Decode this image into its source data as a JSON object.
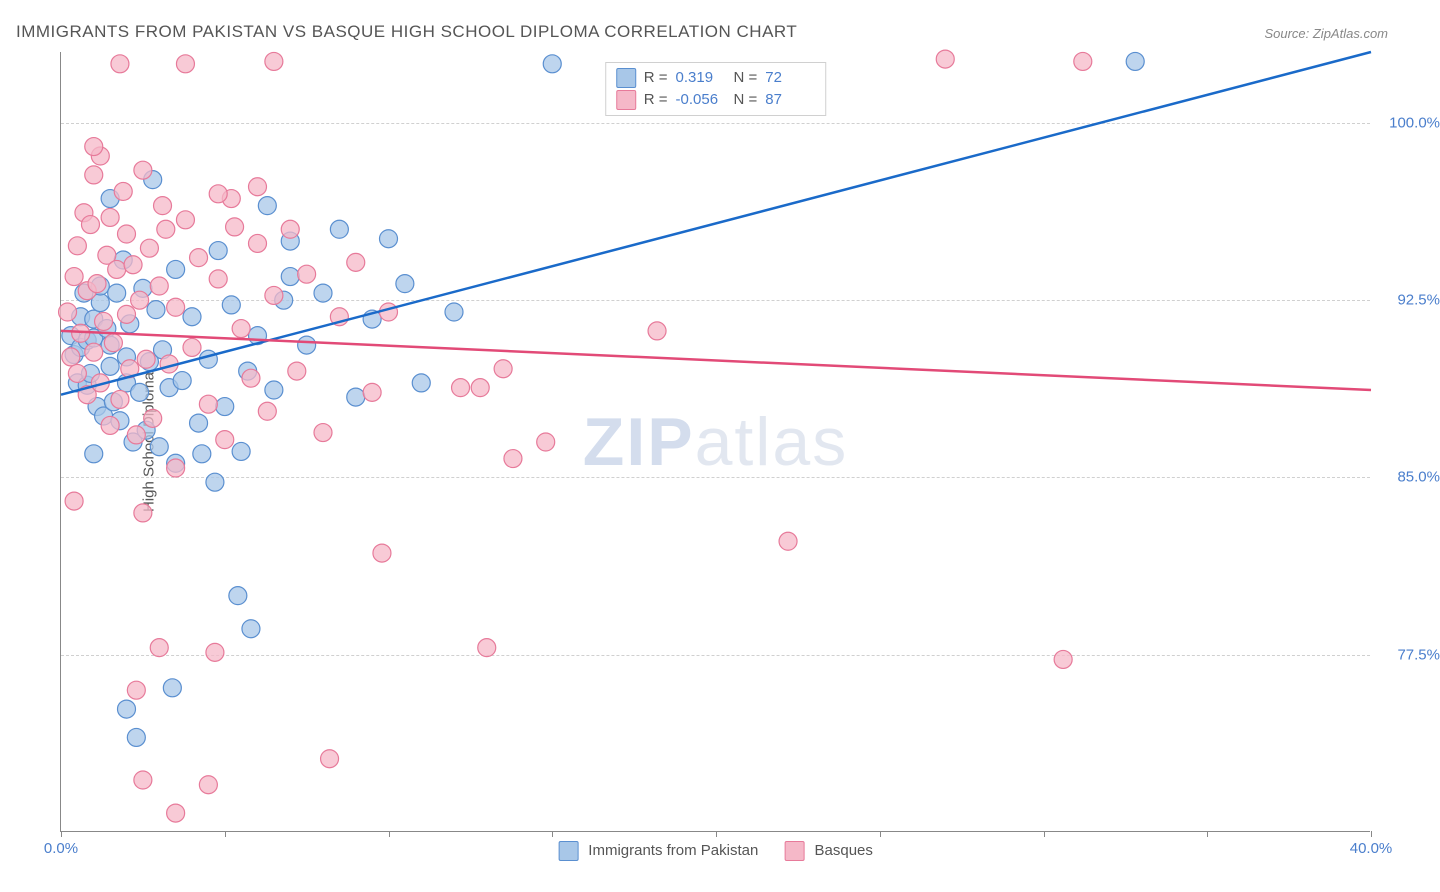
{
  "title": "IMMIGRANTS FROM PAKISTAN VS BASQUE HIGH SCHOOL DIPLOMA CORRELATION CHART",
  "source": "Source: ZipAtlas.com",
  "watermark_bold": "ZIP",
  "watermark_light": "atlas",
  "chart": {
    "type": "scatter-regression",
    "xlim": [
      0,
      40
    ],
    "ylim": [
      70,
      103
    ],
    "ylabel": "High School Diploma",
    "xtick_positions": [
      0,
      5,
      10,
      15,
      20,
      25,
      30,
      35,
      40
    ],
    "xtick_labels": [
      "0.0%",
      "",
      "",
      "",
      "",
      "",
      "",
      "",
      "40.0%"
    ],
    "ytick_positions": [
      77.5,
      85.0,
      92.5,
      100.0
    ],
    "ytick_labels": [
      "77.5%",
      "85.0%",
      "92.5%",
      "100.0%"
    ],
    "grid_color": "#d0d0d0",
    "axis_color": "#888888",
    "background_color": "#ffffff",
    "series": [
      {
        "name": "Immigrants from Pakistan",
        "key": "pakistan",
        "marker_fill": "#a8c7e8",
        "marker_stroke": "#5a8fd0",
        "marker_radius": 9,
        "marker_opacity": 0.75,
        "line_color": "#1a6ac9",
        "line_width": 2.5,
        "r_value": "0.319",
        "n_value": "72",
        "regression": {
          "x0": 0,
          "y0": 88.5,
          "x1": 40,
          "y1": 103
        },
        "points": [
          [
            0.3,
            91
          ],
          [
            0.4,
            90.2
          ],
          [
            0.5,
            89
          ],
          [
            0.6,
            90.5
          ],
          [
            0.6,
            91.8
          ],
          [
            0.7,
            92.8
          ],
          [
            0.8,
            88.9
          ],
          [
            0.8,
            90.8
          ],
          [
            0.9,
            89.4
          ],
          [
            1.0,
            90.9
          ],
          [
            1.0,
            91.7
          ],
          [
            1.1,
            88
          ],
          [
            1.2,
            92.4
          ],
          [
            1.2,
            93.1
          ],
          [
            1.3,
            87.6
          ],
          [
            1.4,
            91.3
          ],
          [
            1.5,
            89.7
          ],
          [
            1.5,
            90.6
          ],
          [
            1.6,
            88.2
          ],
          [
            1.7,
            92.8
          ],
          [
            1.8,
            87.4
          ],
          [
            1.9,
            94.2
          ],
          [
            2.0,
            89
          ],
          [
            2.0,
            90.1
          ],
          [
            2.1,
            91.5
          ],
          [
            2.2,
            86.5
          ],
          [
            2.4,
            88.6
          ],
          [
            2.5,
            93
          ],
          [
            2.6,
            87
          ],
          [
            2.7,
            89.9
          ],
          [
            2.9,
            92.1
          ],
          [
            3.0,
            86.3
          ],
          [
            3.1,
            90.4
          ],
          [
            3.3,
            88.8
          ],
          [
            3.5,
            93.8
          ],
          [
            3.5,
            85.6
          ],
          [
            3.7,
            89.1
          ],
          [
            4.0,
            91.8
          ],
          [
            4.2,
            87.3
          ],
          [
            4.5,
            90.0
          ],
          [
            4.8,
            94.6
          ],
          [
            5.0,
            88.0
          ],
          [
            5.2,
            92.3
          ],
          [
            5.5,
            86.1
          ],
          [
            5.7,
            89.5
          ],
          [
            6.0,
            91.0
          ],
          [
            6.3,
            96.5
          ],
          [
            6.5,
            88.7
          ],
          [
            7.0,
            93.5
          ],
          [
            7.0,
            95.0
          ],
          [
            7.5,
            90.6
          ],
          [
            8.0,
            92.8
          ],
          [
            8.5,
            95.5
          ],
          [
            9.0,
            88.4
          ],
          [
            9.5,
            91.7
          ],
          [
            10.0,
            95.1
          ],
          [
            10.5,
            93.2
          ],
          [
            11.0,
            89.0
          ],
          [
            12.0,
            92.0
          ],
          [
            2.0,
            75.2
          ],
          [
            2.3,
            74.0
          ],
          [
            3.4,
            76.1
          ],
          [
            5.4,
            80.0
          ],
          [
            5.8,
            78.6
          ],
          [
            6.8,
            92.5
          ],
          [
            15.0,
            102.5
          ],
          [
            32.8,
            102.6
          ],
          [
            1.5,
            96.8
          ],
          [
            2.8,
            97.6
          ],
          [
            4.3,
            86.0
          ],
          [
            4.7,
            84.8
          ],
          [
            1.0,
            86.0
          ]
        ]
      },
      {
        "name": "Basques",
        "key": "basques",
        "marker_fill": "#f5b8c8",
        "marker_stroke": "#e77a9a",
        "marker_radius": 9,
        "marker_opacity": 0.75,
        "line_color": "#e24a77",
        "line_width": 2.5,
        "r_value": "-0.056",
        "n_value": "87",
        "regression": {
          "x0": 0,
          "y0": 91.2,
          "x1": 40,
          "y1": 88.7
        },
        "points": [
          [
            0.2,
            92
          ],
          [
            0.3,
            90.1
          ],
          [
            0.4,
            93.5
          ],
          [
            0.5,
            89.4
          ],
          [
            0.5,
            94.8
          ],
          [
            0.6,
            91.1
          ],
          [
            0.7,
            96.2
          ],
          [
            0.8,
            88.5
          ],
          [
            0.8,
            92.9
          ],
          [
            0.9,
            95.7
          ],
          [
            1.0,
            90.3
          ],
          [
            1.0,
            97.8
          ],
          [
            1.1,
            93.2
          ],
          [
            1.2,
            89.0
          ],
          [
            1.2,
            98.6
          ],
          [
            1.3,
            91.6
          ],
          [
            1.4,
            94.4
          ],
          [
            1.5,
            87.2
          ],
          [
            1.5,
            96.0
          ],
          [
            1.6,
            90.7
          ],
          [
            1.7,
            93.8
          ],
          [
            1.8,
            88.3
          ],
          [
            1.9,
            97.1
          ],
          [
            2.0,
            91.9
          ],
          [
            2.0,
            95.3
          ],
          [
            2.1,
            89.6
          ],
          [
            2.2,
            94.0
          ],
          [
            2.3,
            86.8
          ],
          [
            2.4,
            92.5
          ],
          [
            2.5,
            98.0
          ],
          [
            2.6,
            90.0
          ],
          [
            2.7,
            94.7
          ],
          [
            2.8,
            87.5
          ],
          [
            3.0,
            93.1
          ],
          [
            3.1,
            96.5
          ],
          [
            3.3,
            89.8
          ],
          [
            3.5,
            92.2
          ],
          [
            3.5,
            85.4
          ],
          [
            3.8,
            95.9
          ],
          [
            4.0,
            90.5
          ],
          [
            4.2,
            94.3
          ],
          [
            4.5,
            88.1
          ],
          [
            4.8,
            93.4
          ],
          [
            5.0,
            86.6
          ],
          [
            5.2,
            96.8
          ],
          [
            5.5,
            91.3
          ],
          [
            5.8,
            89.2
          ],
          [
            6.0,
            94.9
          ],
          [
            6.3,
            87.8
          ],
          [
            6.5,
            92.7
          ],
          [
            7.0,
            95.5
          ],
          [
            7.2,
            89.5
          ],
          [
            7.5,
            93.6
          ],
          [
            8.0,
            86.9
          ],
          [
            8.5,
            91.8
          ],
          [
            9.0,
            94.1
          ],
          [
            9.5,
            88.6
          ],
          [
            10.0,
            92.0
          ],
          [
            13.5,
            89.6
          ],
          [
            22.2,
            82.3
          ],
          [
            27.0,
            102.7
          ],
          [
            31.2,
            102.6
          ],
          [
            30.6,
            77.3
          ],
          [
            13.0,
            77.8
          ],
          [
            3.0,
            77.8
          ],
          [
            4.7,
            77.6
          ],
          [
            2.3,
            76.0
          ],
          [
            2.5,
            83.5
          ],
          [
            2.5,
            72.2
          ],
          [
            3.5,
            70.8
          ],
          [
            4.5,
            72.0
          ],
          [
            8.2,
            73.1
          ],
          [
            9.8,
            81.8
          ],
          [
            12.2,
            88.8
          ],
          [
            12.8,
            88.8
          ],
          [
            13.8,
            85.8
          ],
          [
            14.8,
            86.5
          ],
          [
            18.2,
            91.2
          ],
          [
            1.0,
            99.0
          ],
          [
            1.8,
            102.5
          ],
          [
            6.5,
            102.6
          ],
          [
            3.8,
            102.5
          ],
          [
            4.8,
            97.0
          ],
          [
            5.3,
            95.6
          ],
          [
            6.0,
            97.3
          ],
          [
            3.2,
            95.5
          ],
          [
            0.4,
            84.0
          ]
        ]
      }
    ]
  },
  "legend_bottom_label_1": "Immigrants from Pakistan",
  "legend_bottom_label_2": "Basques",
  "legend_top_r_prefix": "R =",
  "legend_top_n_prefix": "N ="
}
